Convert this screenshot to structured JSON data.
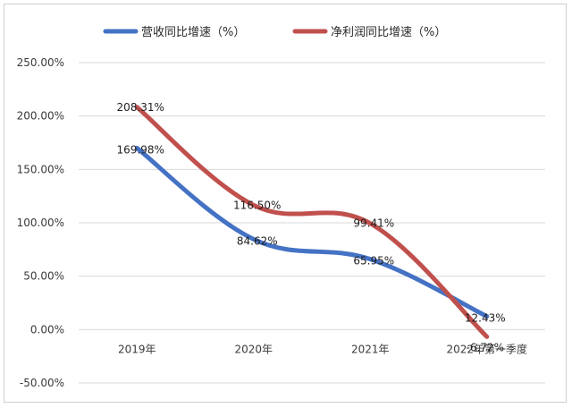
{
  "chart_data": {
    "type": "line",
    "title": "",
    "xlabel": "",
    "ylabel": "",
    "categories": [
      "2019年",
      "2020年",
      "2021年",
      "2022年第一季度"
    ],
    "yticks": [
      "250.00%",
      "200.00%",
      "150.00%",
      "100.00%",
      "50.00%",
      "0.00%",
      "-50.00%"
    ],
    "ylim": [
      -50,
      250
    ],
    "grid": true,
    "legend_position": "top",
    "series": [
      {
        "name": "营收同比增速（%）",
        "values": [
          169.98,
          84.62,
          65.95,
          12.43
        ],
        "labels": [
          "169.98%",
          "84.62%",
          "65.95%",
          "12.43%"
        ],
        "color": "#4472c4"
      },
      {
        "name": "净利润同比增速（%）",
        "values": [
          208.31,
          116.5,
          99.41,
          -6.72
        ],
        "labels": [
          "208.31%",
          "116.50%",
          "99.41%",
          "-6.72%"
        ],
        "color": "#c0504d"
      }
    ]
  }
}
